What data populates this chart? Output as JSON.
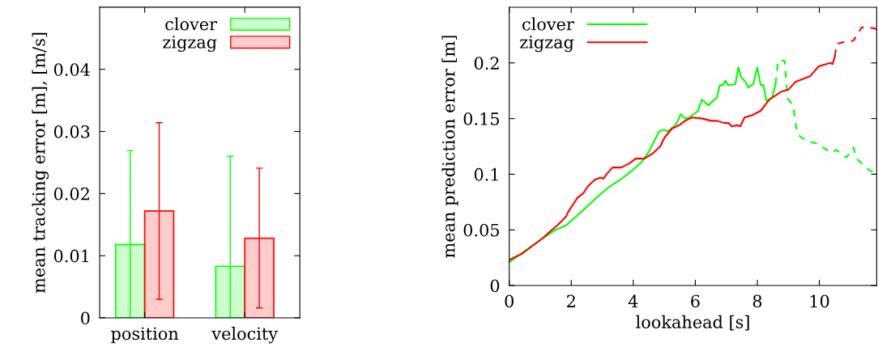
{
  "chart_data": [
    {
      "type": "bar",
      "ylabel": "mean tracking error [m], [m/s]",
      "categories": [
        "position",
        "velocity"
      ],
      "ylim": [
        0,
        0.05
      ],
      "yticks": [
        0,
        0.01,
        0.02,
        0.03,
        0.04
      ],
      "legend": "top right",
      "grid": false,
      "series": [
        {
          "name": "clover",
          "color": "#00ff00",
          "values": [
            0.0118,
            0.0083
          ],
          "errors": [
            [
              0,
              0.0269
            ],
            [
              0,
              0.026
            ]
          ]
        },
        {
          "name": "zigzag",
          "color": "#ff0000",
          "values": [
            0.0172,
            0.0128
          ],
          "errors": [
            [
              0.003,
              0.0314
            ],
            [
              0.0016,
              0.0241
            ]
          ]
        }
      ]
    },
    {
      "type": "line",
      "xlabel": "lookahead [s]",
      "ylabel": "mean prediction error [m]",
      "xlim": [
        0,
        11.85
      ],
      "ylim": [
        0,
        0.25
      ],
      "xticks": [
        0,
        2,
        4,
        6,
        8,
        10
      ],
      "yticks": [
        0,
        0.05,
        0.1,
        0.15,
        0.2
      ],
      "legend": "top left",
      "grid": false,
      "series": [
        {
          "name": "clover",
          "color": "#00ff00",
          "line_style": "solid",
          "x": [
            0,
            0.5,
            1.08,
            1.5,
            1.83,
            2.2,
            2.58,
            2.9,
            3.24,
            3.61,
            3.99,
            4.27,
            4.5,
            4.83,
            4.97,
            5.11,
            5.39,
            5.53,
            5.67,
            5.81,
            6.09,
            6.21,
            6.42,
            6.7,
            6.79,
            6.88,
            6.97,
            7.06,
            7.29,
            7.39,
            7.48,
            7.59,
            7.71,
            7.87,
            8.0,
            8.11,
            8.2,
            8.29,
            8.48,
            8.59
          ],
          "values": [
            0.0209,
            0.031,
            0.0425,
            0.05,
            0.054,
            0.063,
            0.0728,
            0.081,
            0.089,
            0.0956,
            0.104,
            0.111,
            0.12,
            0.1385,
            0.14,
            0.1385,
            0.145,
            0.154,
            0.15,
            0.151,
            0.157,
            0.167,
            0.162,
            0.169,
            0.18,
            0.18,
            0.184,
            0.18,
            0.181,
            0.196,
            0.187,
            0.184,
            0.178,
            0.181,
            0.196,
            0.18,
            0.18,
            0.166,
            0.169,
            0.181
          ]
        },
        {
          "color": "#00ff00",
          "line_style": "dashed",
          "x": [
            8.59,
            8.67,
            8.88,
            8.98,
            9.15,
            9.29,
            9.62,
            9.9,
            10.4,
            10.54,
            10.87,
            11.1,
            11.2,
            11.62,
            11.85
          ],
          "values": [
            0.181,
            0.202,
            0.202,
            0.168,
            0.162,
            0.136,
            0.129,
            0.128,
            0.119,
            0.122,
            0.115,
            0.124,
            0.114,
            0.1035,
            0.1
          ]
        },
        {
          "name": "zigzag",
          "color": "#ff0000",
          "line_style": "solid",
          "x": [
            0,
            0.42,
            1.08,
            1.31,
            1.55,
            1.83,
            1.92,
            2.2,
            2.39,
            2.53,
            2.76,
            2.95,
            3.04,
            3.14,
            3.33,
            3.61,
            3.89,
            4.08,
            4.36,
            4.64,
            4.87,
            5.01,
            5.25,
            5.48,
            5.67,
            5.9,
            6.23,
            6.51,
            6.7,
            6.94,
            7.08,
            7.17,
            7.36,
            7.45,
            7.59,
            7.83,
            8.11,
            8.39,
            8.76,
            9.0,
            9.23,
            9.7,
            9.98,
            10.36,
            10.43,
            10.5
          ],
          "values": [
            0.023,
            0.0287,
            0.0425,
            0.0484,
            0.054,
            0.0619,
            0.067,
            0.0788,
            0.083,
            0.089,
            0.095,
            0.097,
            0.096,
            0.1,
            0.106,
            0.106,
            0.11,
            0.114,
            0.114,
            0.119,
            0.125,
            0.133,
            0.141,
            0.144,
            0.148,
            0.151,
            0.15,
            0.148,
            0.148,
            0.146,
            0.146,
            0.143,
            0.144,
            0.143,
            0.151,
            0.153,
            0.157,
            0.167,
            0.174,
            0.176,
            0.183,
            0.188,
            0.197,
            0.2,
            0.199,
            0.206
          ]
        },
        {
          "color": "#ff0000",
          "line_style": "dashed",
          "x": [
            10.5,
            10.56,
            10.82,
            11.1,
            11.37,
            11.58,
            11.8,
            11.85
          ],
          "values": [
            0.206,
            0.217,
            0.219,
            0.22,
            0.232,
            0.232,
            0.231,
            0.23
          ]
        }
      ]
    }
  ]
}
